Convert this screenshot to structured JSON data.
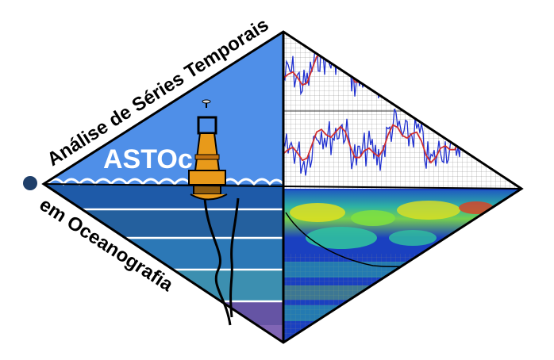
{
  "logo": {
    "acronym": "ASTOc",
    "title_upper": "Análise de Séries Temporais",
    "title_lower": "em Oceanografia"
  },
  "colors": {
    "sky": "#4f8fe8",
    "sea_top": "#1e5aa8",
    "band_1": "#24609e",
    "band_2": "#2c78b6",
    "band_3": "#3c8fb0",
    "band_4": "#4a8c8c",
    "band_5": "#6a4aa8",
    "buoy_body": "#e89a1a",
    "series_line": "#2030d0",
    "series_trend": "#d03030",
    "wavelet_low": "#1a40c0",
    "wavelet_mid": "#30c0a0",
    "wavelet_high": "#e0e020",
    "frame": "#000000",
    "dot": "#1f3f6a"
  },
  "icons": {
    "buoy": "buoy-icon",
    "dot": "dot-icon"
  }
}
